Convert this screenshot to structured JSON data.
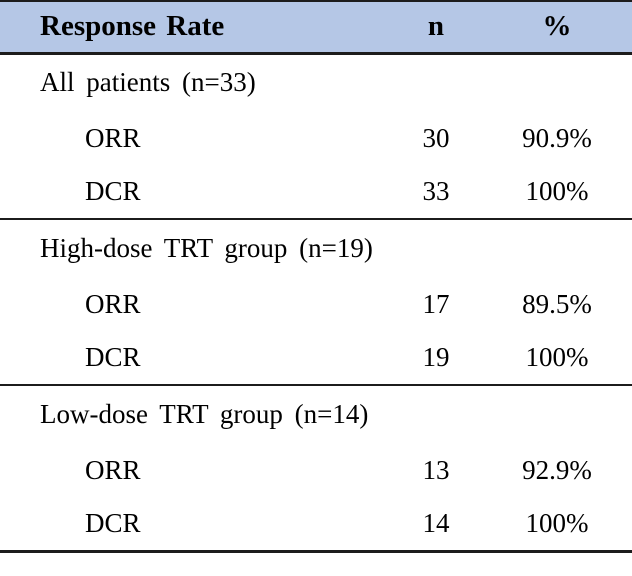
{
  "table": {
    "colors": {
      "header_bg": "#b5c7e6",
      "border": "#1c1c1c",
      "text": "#000000"
    },
    "header": {
      "label": "Response Rate",
      "n": "n",
      "pct": "%"
    },
    "sections": [
      {
        "label": "All patients (n=33)",
        "rows": [
          {
            "measure": "ORR",
            "n": "30",
            "pct": "90.9%"
          },
          {
            "measure": "DCR",
            "n": "33",
            "pct": "100%"
          }
        ]
      },
      {
        "label": "High-dose TRT group (n=19)",
        "rows": [
          {
            "measure": "ORR",
            "n": "17",
            "pct": "89.5%"
          },
          {
            "measure": "DCR",
            "n": "19",
            "pct": "100%"
          }
        ]
      },
      {
        "label": "Low-dose TRT group (n=14)",
        "rows": [
          {
            "measure": "ORR",
            "n": "13",
            "pct": "92.9%"
          },
          {
            "measure": "DCR",
            "n": "14",
            "pct": "100%"
          }
        ]
      }
    ]
  }
}
